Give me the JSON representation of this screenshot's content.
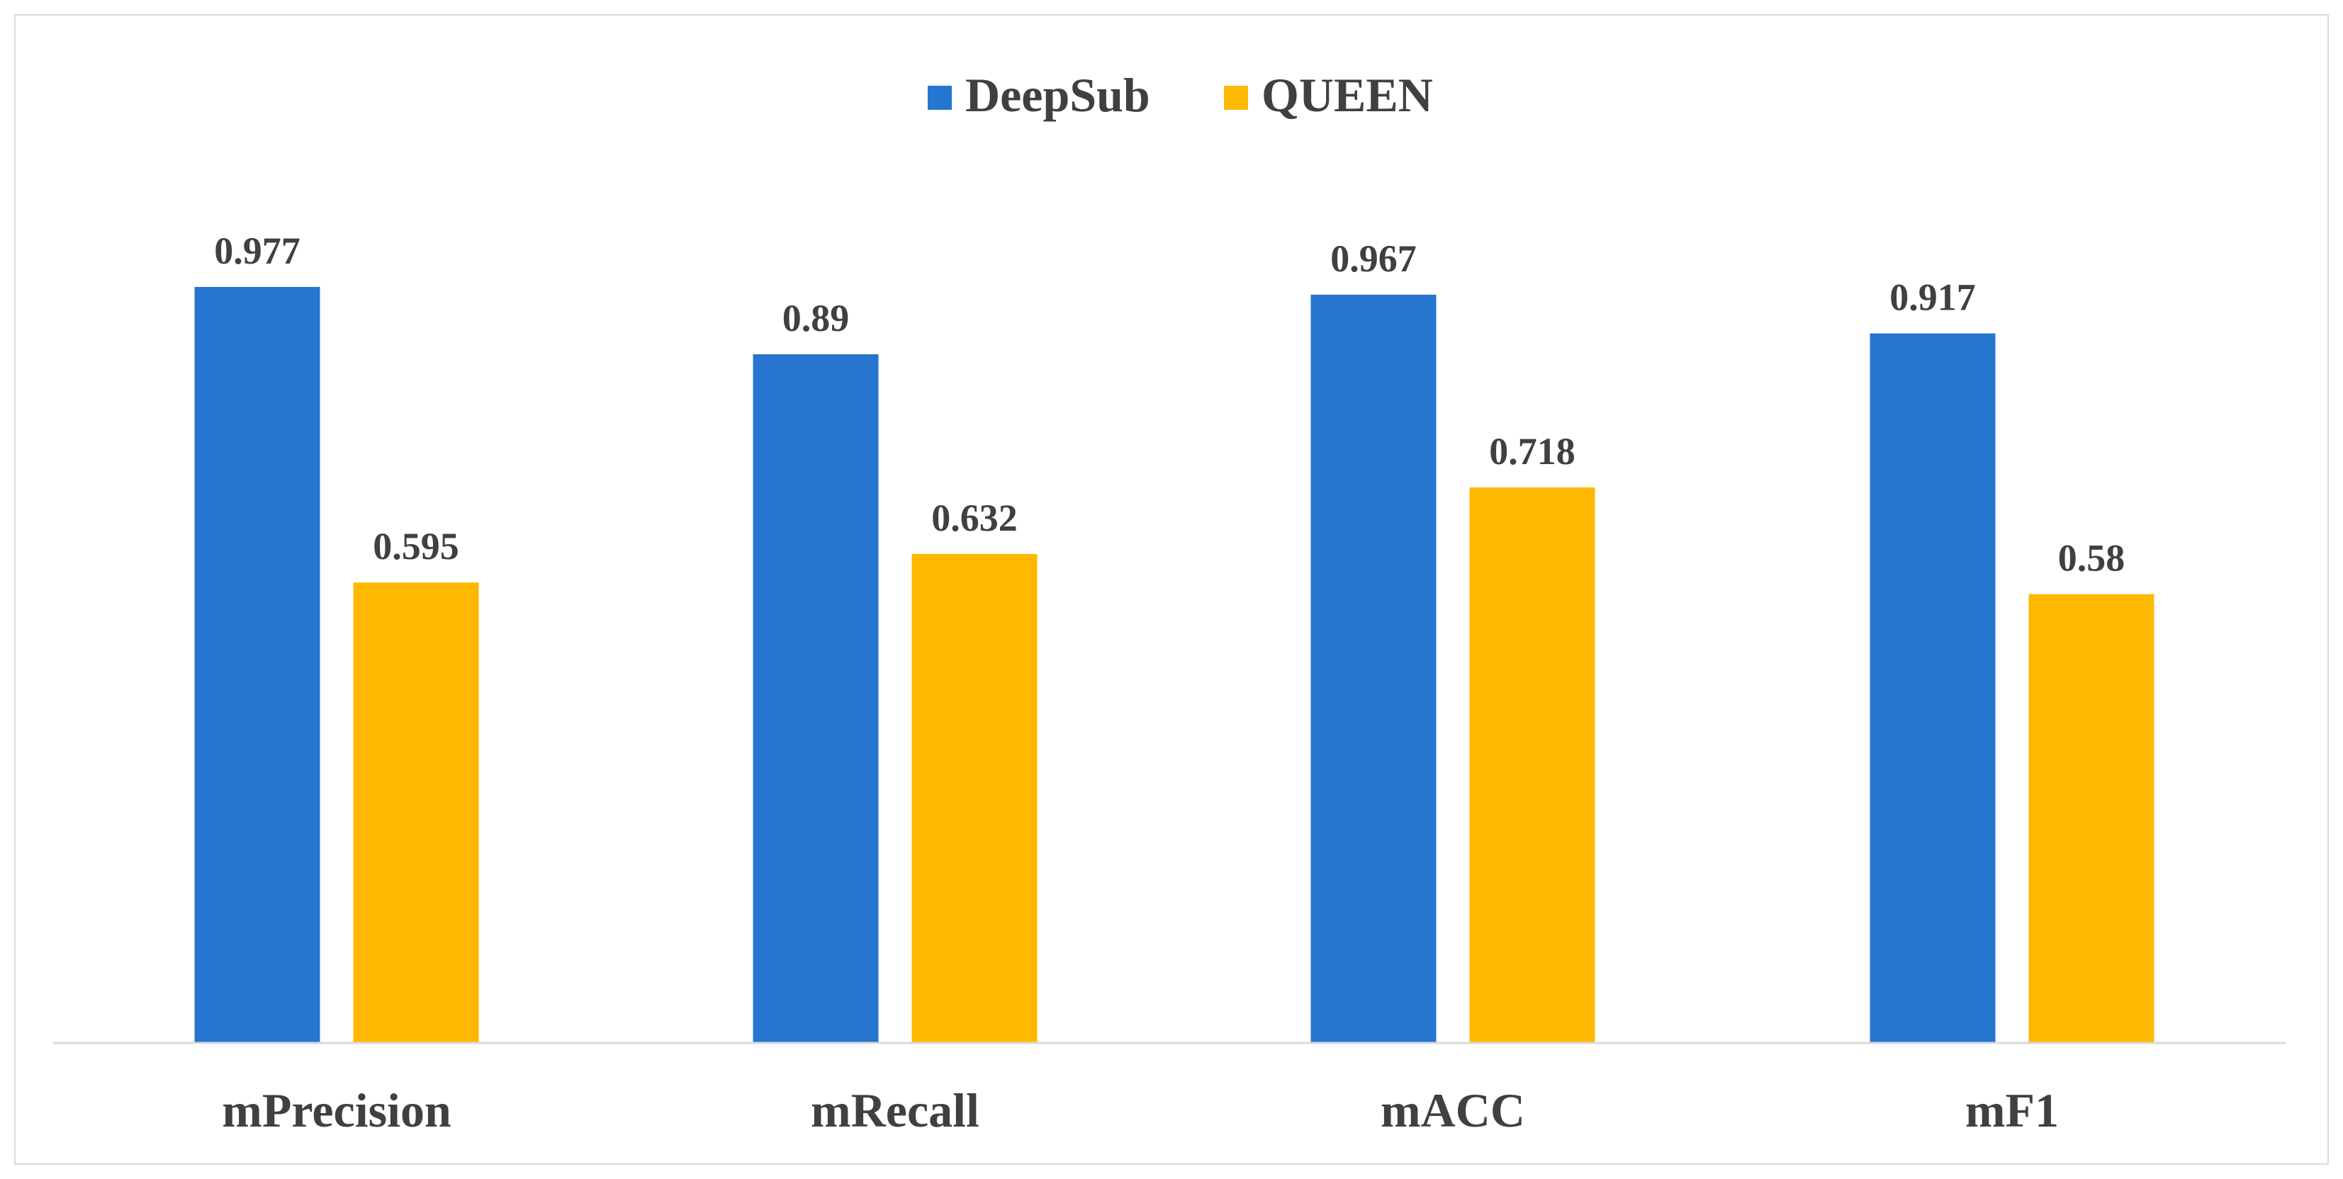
{
  "chart_data": {
    "type": "bar",
    "categories": [
      "mPrecision",
      "mRecall",
      "mACC",
      "mF1"
    ],
    "series": [
      {
        "name": "DeepSub",
        "color": "#2675D0",
        "values": [
          0.977,
          0.89,
          0.967,
          0.917
        ],
        "labels": [
          "0.977",
          "0.89",
          "0.967",
          "0.917"
        ]
      },
      {
        "name": "QUEEN",
        "color": "#FFB800",
        "values": [
          0.595,
          0.632,
          0.718,
          0.58
        ],
        "labels": [
          "0.595",
          "0.632",
          "0.718",
          "0.58"
        ]
      }
    ],
    "title": "",
    "xlabel": "",
    "ylabel": "",
    "ylim": [
      0,
      1.0
    ],
    "grid": false,
    "legend": "top-center"
  }
}
